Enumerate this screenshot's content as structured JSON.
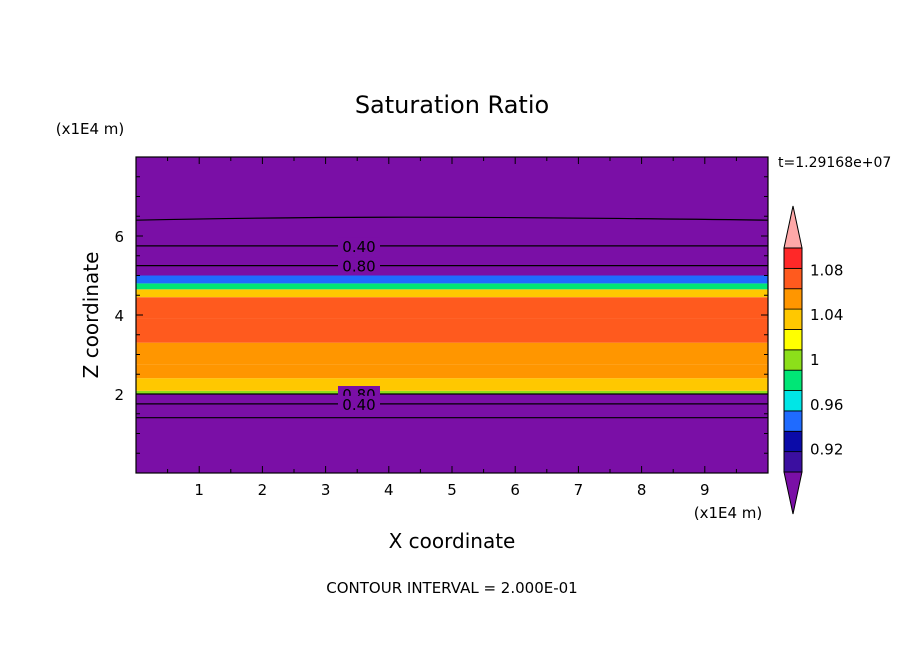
{
  "chart_data": {
    "type": "heatmap",
    "title": "Saturation Ratio",
    "xlabel": "X coordinate",
    "ylabel": "Z coordinate",
    "x_units": "(x1E4 m)",
    "y_units": "(x1E4 m)",
    "time_label": "t=1.29168e+07",
    "footer": "CONTOUR INTERVAL = 2.000E-01",
    "xlim": [
      0,
      10
    ],
    "ylim": [
      0,
      8
    ],
    "x_ticks": [
      1,
      2,
      3,
      4,
      5,
      6,
      7,
      8,
      9
    ],
    "y_ticks": [
      2,
      4,
      6
    ],
    "contour_labels": [
      "0.40",
      "0.80",
      "0.80",
      "0.40"
    ],
    "colorbar": {
      "levels": [
        {
          "color": "#7a0fa6"
        },
        {
          "color": "#3b0fa0"
        },
        {
          "color": "#0b0ba8"
        },
        {
          "color": "#1f6bff"
        },
        {
          "color": "#00e6e6"
        },
        {
          "color": "#00e676"
        },
        {
          "color": "#8cdf1a"
        },
        {
          "color": "#ffff00"
        },
        {
          "color": "#ffc800"
        },
        {
          "color": "#ff9600"
        },
        {
          "color": "#ff5a1e"
        },
        {
          "color": "#ff2828"
        },
        {
          "color": "#ffa8a8"
        }
      ],
      "tick_labels": [
        "0.92",
        "0.96",
        "1",
        "1.04",
        "1.08"
      ],
      "tick_values": [
        0.92,
        0.96,
        1.0,
        1.04,
        1.08
      ],
      "min": 0.9,
      "max": 1.1
    },
    "field_bands": [
      {
        "z0": 0.0,
        "z1": 2.0,
        "value": 0.5
      },
      {
        "z0": 2.0,
        "z1": 2.08,
        "value": 1.0
      },
      {
        "z0": 2.08,
        "z1": 2.4,
        "value": 1.03
      },
      {
        "z0": 2.4,
        "z1": 2.75,
        "value": 1.06
      },
      {
        "z0": 2.75,
        "z1": 3.3,
        "value": 1.05
      },
      {
        "z0": 3.3,
        "z1": 3.9,
        "value": 1.07
      },
      {
        "z0": 3.9,
        "z1": 4.45,
        "value": 1.08
      },
      {
        "z0": 4.45,
        "z1": 4.65,
        "value": 1.03
      },
      {
        "z0": 4.65,
        "z1": 4.8,
        "value": 0.98
      },
      {
        "z0": 4.8,
        "z1": 5.0,
        "value": 0.94
      },
      {
        "z0": 5.0,
        "z1": 8.0,
        "value": 0.5
      }
    ],
    "contours": [
      {
        "level": 0.4,
        "z": 6.4
      },
      {
        "level": 0.4,
        "z": 5.75
      },
      {
        "level": 0.8,
        "z": 5.25
      },
      {
        "level": 0.8,
        "z": 2.0
      },
      {
        "level": 0.4,
        "z": 1.75
      },
      {
        "level": 0.4,
        "z": 1.4
      }
    ]
  }
}
